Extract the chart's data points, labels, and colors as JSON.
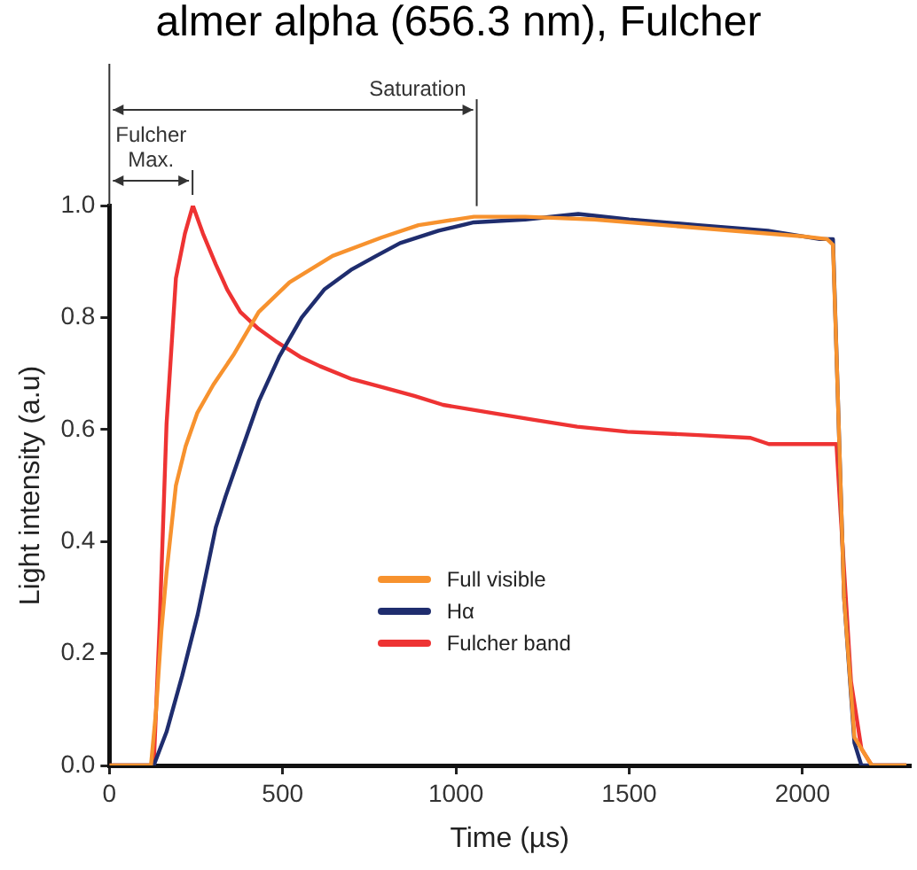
{
  "chart_data": {
    "type": "line",
    "title": "almer alpha (656.3 nm), Fulcher",
    "xlabel": "Time (µs)",
    "ylabel": "Light intensity (a.u)",
    "xlim": [
      0,
      2310
    ],
    "xticks": [
      0,
      500,
      1000,
      1500,
      2000
    ],
    "ylim": [
      0,
      1.0
    ],
    "yticks": [
      {
        "value": 0,
        "label": "0.0"
      },
      {
        "value": 0.2,
        "label": "0.2"
      },
      {
        "value": 0.4,
        "label": "0.4"
      },
      {
        "value": 0.6,
        "label": "0.6"
      },
      {
        "value": 0.8,
        "label": "0.8"
      },
      {
        "value": 1.0,
        "label": "1.0"
      }
    ],
    "grid": false,
    "legend": "bottom",
    "marker": "none",
    "line_style": "solid",
    "annotations": [
      {
        "text": "Saturation",
        "x": 1060,
        "y": 0.98
      },
      {
        "text": "Fulcher Max.",
        "x": 240,
        "y": 1.0
      }
    ],
    "series": [
      {
        "name": "Full visible",
        "color": "#f7922e",
        "x": [
          0,
          60,
          120,
          135,
          150,
          165,
          192,
          220,
          254,
          300,
          360,
          431,
          520,
          644,
          786,
          892,
          1052,
          1200,
          1400,
          1600,
          1800,
          2000,
          2071,
          2088,
          2100,
          2120,
          2150,
          2200,
          2300
        ],
        "values": [
          0,
          0,
          0,
          0.1,
          0.24,
          0.345,
          0.5,
          0.57,
          0.63,
          0.68,
          0.735,
          0.81,
          0.863,
          0.91,
          0.943,
          0.965,
          0.98,
          0.98,
          0.975,
          0.965,
          0.955,
          0.945,
          0.94,
          0.93,
          0.7,
          0.3,
          0.05,
          0,
          0
        ]
      },
      {
        "name": "Hα",
        "color": "#1f2d6e",
        "x": [
          0,
          60,
          128,
          165,
          210,
          255,
          307,
          335,
          380,
          431,
          490,
          555,
          620,
          697,
          770,
          839,
          950,
          1052,
          1200,
          1353,
          1500,
          1700,
          1900,
          2050,
          2088,
          2100,
          2120,
          2150,
          2170,
          2300
        ],
        "values": [
          0,
          0,
          0,
          0.06,
          0.16,
          0.27,
          0.425,
          0.48,
          0.56,
          0.65,
          0.73,
          0.8,
          0.85,
          0.885,
          0.91,
          0.933,
          0.955,
          0.97,
          0.975,
          0.985,
          0.975,
          0.965,
          0.955,
          0.94,
          0.94,
          0.7,
          0.3,
          0.04,
          0,
          0
        ]
      },
      {
        "name": "Fulcher band",
        "color": "#ee3333",
        "x": [
          0,
          60,
          128,
          145,
          165,
          192,
          218,
          241,
          270,
          307,
          340,
          378,
          430,
          484,
          550,
          608,
          700,
          786,
          880,
          963,
          1100,
          1229,
          1350,
          1495,
          1700,
          1850,
          1903,
          2000,
          2098,
          2110,
          2140,
          2170,
          2200,
          2300
        ],
        "values": [
          0,
          0,
          0,
          0.25,
          0.61,
          0.87,
          0.95,
          1.0,
          0.95,
          0.895,
          0.85,
          0.81,
          0.78,
          0.756,
          0.73,
          0.713,
          0.69,
          0.676,
          0.66,
          0.644,
          0.63,
          0.617,
          0.605,
          0.596,
          0.59,
          0.585,
          0.574,
          0.574,
          0.574,
          0.45,
          0.15,
          0.03,
          0,
          0
        ]
      }
    ]
  }
}
